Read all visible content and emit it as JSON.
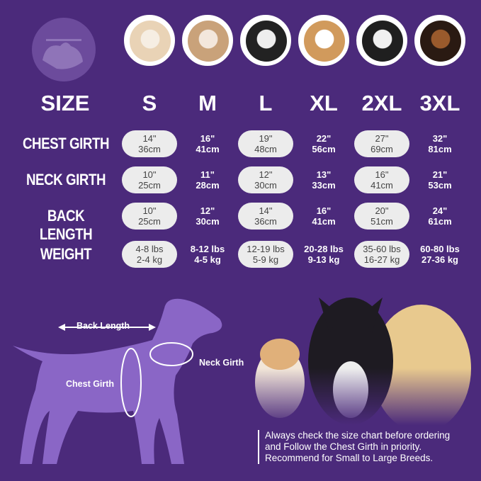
{
  "header": {
    "size_label": "SIZE",
    "sizes": [
      "S",
      "M",
      "L",
      "XL",
      "2XL",
      "3XL"
    ]
  },
  "rows": [
    {
      "label": "CHEST GIRTH",
      "values": [
        [
          "14\"",
          "36cm"
        ],
        [
          "16\"",
          "41cm"
        ],
        [
          "19\"",
          "48cm"
        ],
        [
          "22\"",
          "56cm"
        ],
        [
          "27\"",
          "69cm"
        ],
        [
          "32\"",
          "81cm"
        ]
      ]
    },
    {
      "label": "NECK GIRTH",
      "values": [
        [
          "10\"",
          "25cm"
        ],
        [
          "11\"",
          "28cm"
        ],
        [
          "12\"",
          "30cm"
        ],
        [
          "13\"",
          "33cm"
        ],
        [
          "16\"",
          "41cm"
        ],
        [
          "21\"",
          "53cm"
        ]
      ]
    },
    {
      "label": "BACK LENGTH",
      "values": [
        [
          "10\"",
          "25cm"
        ],
        [
          "12\"",
          "30cm"
        ],
        [
          "14\"",
          "36cm"
        ],
        [
          "16\"",
          "41cm"
        ],
        [
          "20\"",
          "51cm"
        ],
        [
          "24\"",
          "61cm"
        ]
      ]
    },
    {
      "label": "WEIGHT",
      "values": [
        [
          "4-8 lbs",
          "2-4 kg"
        ],
        [
          "8-12 lbs",
          "4-5 kg"
        ],
        [
          "12-19 lbs",
          "5-9 kg"
        ],
        [
          "20-28 lbs",
          "9-13 kg"
        ],
        [
          "35-60 lbs",
          "16-27 kg"
        ],
        [
          "60-80 lbs",
          "27-36 kg"
        ]
      ]
    }
  ],
  "diagram": {
    "back_length": "Back Length",
    "neck_girth": "Neck Girth",
    "chest_girth": "Chest Girth"
  },
  "note": [
    "Always check the size chart before ordering",
    "and Follow the Chest Girth in priority.",
    "Recommend for Small to Large Breeds."
  ],
  "colors": {
    "background": "#4b2a7b",
    "pill": "#ececec",
    "silhouette": "#8a66c6"
  }
}
